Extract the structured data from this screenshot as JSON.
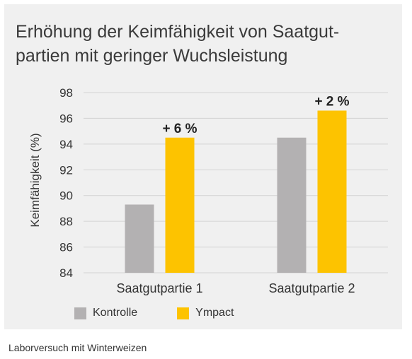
{
  "chart_data": {
    "type": "bar",
    "title": "Erhöhung der Keimfähigkeit von Saatgut-partien mit geringer Wuchsleistung",
    "title_lines": [
      "Erhöhung der Keimfähigkeit von Saatgut-",
      "partien mit geringer Wuchsleistung"
    ],
    "xlabel": "",
    "ylabel": "Keimfähigkeit (%)",
    "ylim": [
      84,
      98
    ],
    "yticks": [
      84,
      86,
      88,
      90,
      92,
      94,
      96,
      98
    ],
    "grid": true,
    "legend_position": "bottom",
    "categories": [
      "Saatgutpartie 1",
      "Saatgutpartie 2"
    ],
    "series": [
      {
        "name": "Kontrolle",
        "values": [
          89.3,
          94.5
        ],
        "color": "#b3b1b2"
      },
      {
        "name": "Ympact",
        "values": [
          94.5,
          96.6
        ],
        "color": "#fdc300"
      }
    ],
    "annotations": [
      {
        "category": "Saatgutpartie 1",
        "series": "Ympact",
        "text": "+ 6 %"
      },
      {
        "category": "Saatgutpartie 2",
        "series": "Ympact",
        "text": "+ 2 %"
      }
    ]
  },
  "footnote": "Laborversuch mit Winterweizen"
}
